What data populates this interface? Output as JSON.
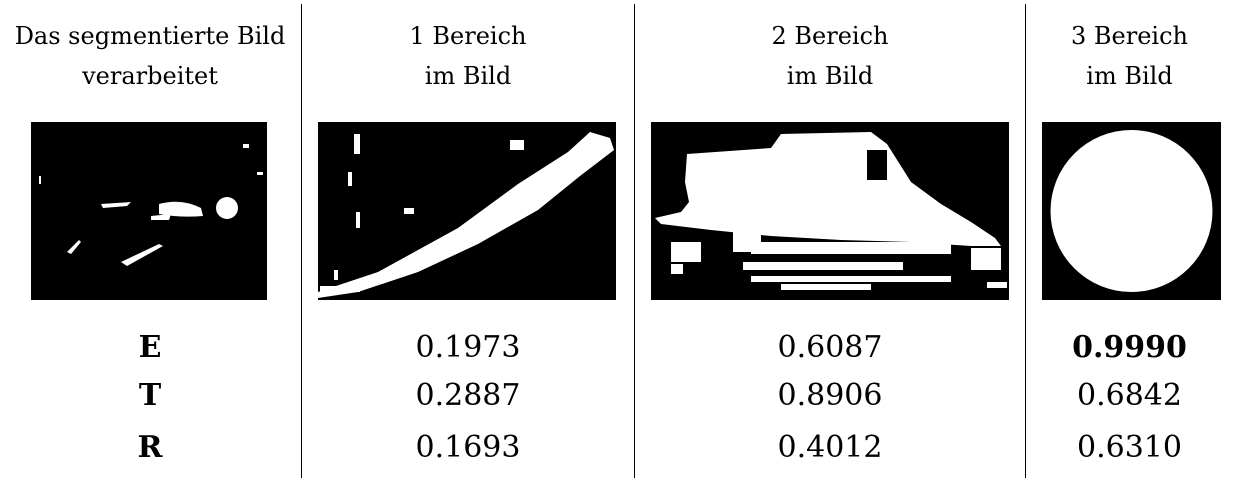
{
  "columns": [
    {
      "header_line1": "Das segmentierte Bild",
      "header_line2": "verarbeitet"
    },
    {
      "header_line1": "1 Bereich",
      "header_line2": "im Bild"
    },
    {
      "header_line1": "2 Bereich",
      "header_line2": "im Bild"
    },
    {
      "header_line1": "3 Bereich",
      "header_line2": "im Bild"
    }
  ],
  "row_labels": {
    "e": "E",
    "t": "T",
    "r": "R"
  },
  "values": {
    "region1": {
      "e": "0.1973",
      "t": "0.2887",
      "r": "0.1693"
    },
    "region2": {
      "e": "0.6087",
      "t": "0.8906",
      "r": "0.4012"
    },
    "region3": {
      "e": "0.9990",
      "t": "0.6842",
      "r": "0.6310"
    }
  }
}
